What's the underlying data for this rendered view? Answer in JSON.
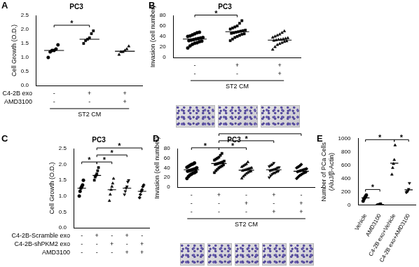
{
  "chart_data": [
    {
      "type": "scatter",
      "label": "A",
      "title": "PC3",
      "ylabel": "Cell Growth (O.D.)",
      "categories": [
        null,
        null,
        null
      ],
      "tick_labels": "y",
      "grid": false,
      "ylim": [
        0,
        2.5
      ],
      "yticks": [
        {
          "value": 0,
          "label": "0.0"
        },
        0.5,
        {
          "value": 1,
          "label": "1.0"
        },
        1.5,
        {
          "value": 2,
          "label": "2.0"
        },
        2.5
      ],
      "groups": [
        {
          "marker": "circle",
          "color": "#000000",
          "values": [
            1.0,
            1.2,
            1.25,
            1.25,
            1.3,
            1.45
          ],
          "mean": 1.25
        },
        {
          "marker": "square",
          "color": "#000000",
          "values": [
            1.5,
            1.6,
            1.65,
            1.7,
            1.85,
            1.95
          ],
          "mean": 1.65
        },
        {
          "marker": "triangle",
          "color": "#000000",
          "values": [
            1.1,
            1.2,
            1.2,
            1.25,
            1.3,
            1.4
          ],
          "mean": 1.22
        }
      ],
      "conditions": [
        {
          "label": "C4-2B exo",
          "marks": [
            "-",
            "+",
            "+"
          ]
        },
        {
          "label": "AMD3100",
          "marks": [
            "-",
            "-",
            "+"
          ]
        }
      ],
      "footer": "ST2 CM",
      "significance": [
        {
          "from": 0,
          "to": 1,
          "label": "*"
        }
      ]
    },
    {
      "type": "scatter",
      "label": "B",
      "title": "PC3",
      "ylabel": "Invasion (cell number)",
      "categories": [
        null,
        null,
        null
      ],
      "tick_labels": "y",
      "grid": false,
      "ylim": [
        0,
        80
      ],
      "yticks": [
        0,
        20,
        40,
        60,
        80
      ],
      "groups": [
        {
          "marker": "circle",
          "color": "#000000",
          "values": [
            18,
            22,
            25,
            27,
            28,
            30,
            31,
            32,
            33,
            34,
            35,
            36,
            37,
            38,
            40,
            41,
            43,
            45,
            47,
            48
          ],
          "mean": 35
        },
        {
          "marker": "square",
          "color": "#000000",
          "values": [
            32,
            35,
            38,
            40,
            42,
            44,
            45,
            46,
            47,
            48,
            49,
            50,
            51,
            52,
            54,
            56,
            58,
            60,
            65,
            70
          ],
          "mean": 49
        },
        {
          "marker": "triangle",
          "color": "#000000",
          "values": [
            15,
            20,
            24,
            26,
            28,
            30,
            31,
            32,
            33,
            34,
            34,
            35,
            36,
            37,
            38,
            40,
            42,
            44,
            47,
            50
          ],
          "mean": 33
        }
      ],
      "conditions": [
        {
          "label": null,
          "marks": [
            "-",
            "+",
            "+"
          ]
        },
        {
          "label": null,
          "marks": [
            "-",
            "-",
            "+"
          ]
        }
      ],
      "footer": "ST2 CM",
      "significance": [
        {
          "from": 0,
          "to": 1,
          "label": "*"
        }
      ]
    },
    {
      "type": "scatter",
      "label": "C",
      "title": "PC3",
      "ylabel": "Cell Growth (O.D.)",
      "categories": [
        null,
        null,
        null,
        null,
        null
      ],
      "tick_labels": "y",
      "grid": false,
      "ylim": [
        0,
        2.5
      ],
      "yticks": [
        {
          "value": 0,
          "label": "0.0"
        },
        0.5,
        {
          "value": 1,
          "label": "1.0"
        },
        1.5,
        {
          "value": 2,
          "label": "2.0"
        },
        2.5
      ],
      "groups": [
        {
          "marker": "circle",
          "color": "#000000",
          "values": [
            1.0,
            1.15,
            1.25,
            1.3,
            1.35,
            1.5
          ],
          "mean": 1.25
        },
        {
          "marker": "square",
          "color": "#000000",
          "values": [
            1.5,
            1.6,
            1.65,
            1.7,
            1.8,
            1.9
          ],
          "mean": 1.65
        },
        {
          "marker": "triangle",
          "color": "#000000",
          "values": [
            0.85,
            1.05,
            1.2,
            1.3,
            1.4,
            1.55
          ],
          "mean": 1.2
        },
        {
          "marker": "triangle_down",
          "color": "#000000",
          "values": [
            1.05,
            1.15,
            1.25,
            1.3,
            1.45,
            1.5
          ],
          "mean": 1.25
        },
        {
          "marker": "diamond",
          "color": "#000000",
          "values": [
            0.95,
            1.05,
            1.15,
            1.2,
            1.3,
            1.35
          ],
          "mean": 1.15
        }
      ],
      "conditions": [
        {
          "label": "C4-2B-Scramble exo",
          "marks": [
            "-",
            "+",
            "-",
            "+",
            "-"
          ]
        },
        {
          "label": "C4-2B-shPKM2 exo",
          "marks": [
            "-",
            "-",
            "+",
            "-",
            "+"
          ]
        },
        {
          "label": "AMD3100",
          "marks": [
            "-",
            "-",
            "-",
            "+",
            "+"
          ]
        }
      ],
      "significance": [
        {
          "from": 0,
          "to": 1,
          "label": "*"
        },
        {
          "from": 1,
          "to": 2,
          "label": "*"
        },
        {
          "from": 1,
          "to": 3,
          "label": "*"
        },
        {
          "from": 1,
          "to": 4,
          "label": "*"
        }
      ]
    },
    {
      "type": "scatter",
      "label": "D",
      "title": "PC3",
      "ylabel": "Invasion (cell number)",
      "categories": [
        null,
        null,
        null,
        null,
        null
      ],
      "tick_labels": "y",
      "grid": false,
      "ylim": [
        0,
        80
      ],
      "yticks": [
        0,
        20,
        40,
        60,
        80
      ],
      "groups": [
        {
          "marker": "circle",
          "color": "#000000",
          "values": [
            18,
            22,
            25,
            27,
            29,
            30,
            32,
            33,
            34,
            35,
            36,
            37,
            38,
            40,
            41,
            43,
            45,
            47,
            48,
            50
          ],
          "mean": 36
        },
        {
          "marker": "square",
          "color": "#000000",
          "values": [
            30,
            34,
            37,
            40,
            42,
            44,
            46,
            47,
            48,
            49,
            50,
            51,
            52,
            54,
            56,
            58,
            60,
            62,
            66,
            70
          ],
          "mean": 49
        },
        {
          "marker": "triangle",
          "color": "#000000",
          "values": [
            18,
            22,
            25,
            28,
            30,
            32,
            33,
            34,
            35,
            36,
            37,
            38,
            39,
            40,
            42,
            44,
            46,
            48,
            52
          ],
          "mean": 35
        },
        {
          "marker": "triangle_down",
          "color": "#000000",
          "values": [
            20,
            24,
            27,
            29,
            30,
            32,
            33,
            34,
            35,
            36,
            37,
            38,
            40,
            41,
            43,
            45,
            47,
            50
          ],
          "mean": 36
        },
        {
          "marker": "diamond",
          "color": "#000000",
          "values": [
            18,
            21,
            24,
            26,
            28,
            30,
            31,
            32,
            33,
            34,
            35,
            36,
            37,
            38,
            40,
            42,
            44,
            47
          ],
          "mean": 33
        }
      ],
      "conditions": [
        {
          "label": null,
          "marks": [
            "-",
            "+",
            "-",
            "+",
            "-"
          ]
        },
        {
          "label": null,
          "marks": [
            "-",
            "-",
            "+",
            "-",
            "+"
          ]
        },
        {
          "label": null,
          "marks": [
            "-",
            "-",
            "-",
            "+",
            "+"
          ]
        }
      ],
      "footer": "ST2 CM",
      "significance": [
        {
          "from": 0,
          "to": 1,
          "label": "*"
        },
        {
          "from": 1,
          "to": 2,
          "label": "*"
        },
        {
          "from": 1,
          "to": 3,
          "label": "*"
        },
        {
          "from": 1,
          "to": 4,
          "label": "*"
        }
      ]
    },
    {
      "type": "scatter",
      "label": "E",
      "ylabel": [
        "Number of PCa Cells",
        "(AluJ/β-Actin)"
      ],
      "categories": [
        "Vehicle",
        "AMD3100",
        "C4-2B exo+Vehicle",
        "C4-2B exo+AMD3100"
      ],
      "grid": false,
      "ylim": [
        0,
        1000
      ],
      "yticks": [
        0,
        200,
        400,
        600,
        800,
        1000
      ],
      "groups": [
        {
          "marker": "circle",
          "color": "#000000",
          "values": [
            60,
            90,
            110,
            130,
            150
          ],
          "mean": 108
        },
        {
          "marker": "square",
          "color": "#000000",
          "values": [
            2,
            5,
            8,
            12,
            18
          ],
          "mean": 9
        },
        {
          "marker": "triangle",
          "color": "#000000",
          "values": [
            460,
            560,
            620,
            680,
            900
          ],
          "mean": 630
        },
        {
          "marker": "triangle_down",
          "color": "#000000",
          "values": [
            190,
            200,
            210,
            240,
            330
          ],
          "mean": 230
        }
      ],
      "significance": [
        {
          "from": 0,
          "to": 1,
          "label": "*"
        },
        {
          "from": 0,
          "to": 2,
          "label": "*"
        },
        {
          "from": 2,
          "to": 3,
          "label": "*"
        }
      ]
    }
  ]
}
